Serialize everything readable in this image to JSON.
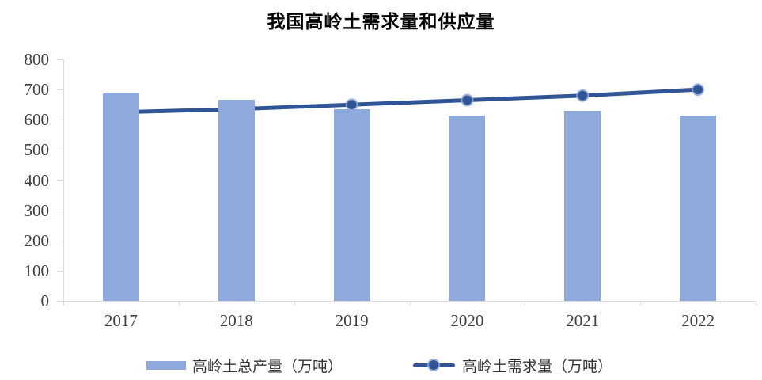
{
  "chart": {
    "title": "我国高岭土需求量和供应量"
  },
  "chart_data": {
    "type": "combo",
    "title": "我国高岭土需求量和供应量",
    "categories": [
      "2017",
      "2018",
      "2019",
      "2020",
      "2021",
      "2022"
    ],
    "series": [
      {
        "name": "高岭土总产量（万吨）",
        "type": "bar",
        "values": [
          690,
          665,
          635,
          615,
          630,
          615
        ]
      },
      {
        "name": "高岭土需求量（万吨）",
        "type": "line",
        "values": [
          625,
          635,
          650,
          665,
          680,
          700
        ]
      }
    ],
    "xlabel": "",
    "ylabel": "",
    "ylim": [
      0,
      800
    ],
    "yticks": [
      0,
      100,
      200,
      300,
      400,
      500,
      600,
      700,
      800
    ],
    "grid": false,
    "legend_position": "bottom"
  },
  "legend": {
    "items": [
      {
        "label": "高岭土总产量（万吨）",
        "marker": "bar-swatch"
      },
      {
        "label": "高岭土需求量（万吨）",
        "marker": "line-marker-swatch"
      }
    ]
  },
  "colors": {
    "bar_fill": "#8EA9DB",
    "line_stroke": "#2F5597",
    "marker_fill": "#2F5597",
    "marker_halo": "#8EA9DB",
    "axis_line": "#D9D9D9",
    "tick_label": "#404040",
    "title_text": "#000000",
    "legend_text": "#333333"
  }
}
